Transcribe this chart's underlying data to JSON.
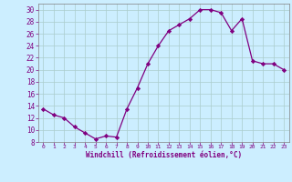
{
  "x": [
    0,
    1,
    2,
    3,
    4,
    5,
    6,
    7,
    8,
    9,
    10,
    11,
    12,
    13,
    14,
    15,
    16,
    17,
    18,
    19,
    20,
    21,
    22,
    23
  ],
  "y": [
    13.5,
    12.5,
    12,
    10.5,
    9.5,
    8.5,
    9,
    8.8,
    13.5,
    17,
    21,
    24,
    26.5,
    27.5,
    28.5,
    30,
    30,
    29.5,
    26.5,
    28.5,
    21.5,
    21,
    21,
    20
  ],
  "line_color": "#800080",
  "marker": "D",
  "marker_size": 2.2,
  "line_width": 0.9,
  "xlabel": "Windchill (Refroidissement éolien,°C)",
  "xlim": [
    -0.5,
    23.5
  ],
  "ylim": [
    8,
    31
  ],
  "yticks": [
    8,
    10,
    12,
    14,
    16,
    18,
    20,
    22,
    24,
    26,
    28,
    30
  ],
  "xticks": [
    0,
    1,
    2,
    3,
    4,
    5,
    6,
    7,
    8,
    9,
    10,
    11,
    12,
    13,
    14,
    15,
    16,
    17,
    18,
    19,
    20,
    21,
    22,
    23
  ],
  "bg_color": "#cceeff",
  "grid_color": "#aacccc",
  "tick_color": "#800080",
  "label_color": "#800080",
  "spine_color": "#808080"
}
